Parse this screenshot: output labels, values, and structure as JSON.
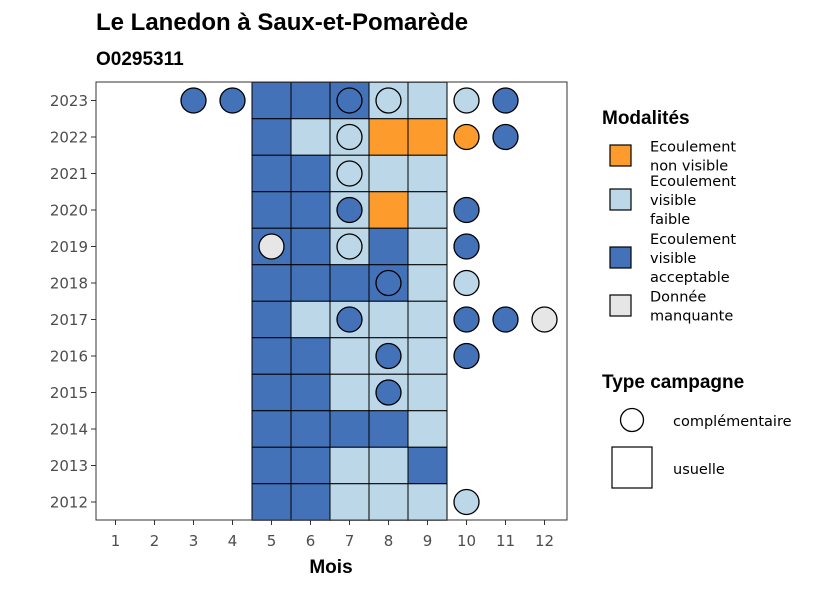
{
  "chart_data": {
    "type": "heatmap",
    "title": "Le Lanedon à Saux-et-Pomarède",
    "subtitle": "O0295311",
    "xlabel": "Mois",
    "ylabel": "",
    "x_ticks": [
      "1",
      "2",
      "3",
      "4",
      "5",
      "6",
      "7",
      "8",
      "9",
      "10",
      "11",
      "12"
    ],
    "y_ticks": [
      "2012",
      "2013",
      "2014",
      "2015",
      "2016",
      "2017",
      "2018",
      "2019",
      "2020",
      "2021",
      "2022",
      "2023"
    ],
    "xlim": [
      1,
      12
    ],
    "ylim": [
      2012,
      2023
    ],
    "grid": false,
    "legend_placement": "right",
    "colors": {
      "non_visible": "#fd9c2d",
      "faible": "#bcd8e8",
      "acceptable": "#4472b8",
      "manquante": "#e6e6e6"
    },
    "legend_modalites": {
      "title": "Modalités",
      "items": [
        {
          "key": "non_visible",
          "lines": [
            "Ecoulement",
            "non visible"
          ]
        },
        {
          "key": "faible",
          "lines": [
            "Ecoulement",
            "visible",
            "faible"
          ]
        },
        {
          "key": "acceptable",
          "lines": [
            "Ecoulement",
            "visible",
            "acceptable"
          ]
        },
        {
          "key": "manquante",
          "lines": [
            "Donnée",
            "manquante"
          ]
        }
      ]
    },
    "legend_campagne": {
      "title": "Type campagne",
      "items": [
        {
          "shape": "circle",
          "label": "complémentaire"
        },
        {
          "shape": "square",
          "label": "usuelle"
        }
      ]
    },
    "usuelle": [
      {
        "year": 2023,
        "month": 5,
        "value": "acceptable"
      },
      {
        "year": 2023,
        "month": 6,
        "value": "acceptable"
      },
      {
        "year": 2023,
        "month": 7,
        "value": "acceptable"
      },
      {
        "year": 2023,
        "month": 8,
        "value": "faible"
      },
      {
        "year": 2023,
        "month": 9,
        "value": "faible"
      },
      {
        "year": 2022,
        "month": 5,
        "value": "acceptable"
      },
      {
        "year": 2022,
        "month": 6,
        "value": "faible"
      },
      {
        "year": 2022,
        "month": 7,
        "value": "faible"
      },
      {
        "year": 2022,
        "month": 8,
        "value": "non_visible"
      },
      {
        "year": 2022,
        "month": 9,
        "value": "non_visible"
      },
      {
        "year": 2021,
        "month": 5,
        "value": "acceptable"
      },
      {
        "year": 2021,
        "month": 6,
        "value": "acceptable"
      },
      {
        "year": 2021,
        "month": 7,
        "value": "faible"
      },
      {
        "year": 2021,
        "month": 8,
        "value": "faible"
      },
      {
        "year": 2021,
        "month": 9,
        "value": "faible"
      },
      {
        "year": 2020,
        "month": 5,
        "value": "acceptable"
      },
      {
        "year": 2020,
        "month": 6,
        "value": "acceptable"
      },
      {
        "year": 2020,
        "month": 7,
        "value": "faible"
      },
      {
        "year": 2020,
        "month": 8,
        "value": "non_visible"
      },
      {
        "year": 2020,
        "month": 9,
        "value": "faible"
      },
      {
        "year": 2019,
        "month": 5,
        "value": "acceptable"
      },
      {
        "year": 2019,
        "month": 6,
        "value": "acceptable"
      },
      {
        "year": 2019,
        "month": 7,
        "value": "faible"
      },
      {
        "year": 2019,
        "month": 8,
        "value": "acceptable"
      },
      {
        "year": 2019,
        "month": 9,
        "value": "faible"
      },
      {
        "year": 2018,
        "month": 5,
        "value": "acceptable"
      },
      {
        "year": 2018,
        "month": 6,
        "value": "acceptable"
      },
      {
        "year": 2018,
        "month": 7,
        "value": "acceptable"
      },
      {
        "year": 2018,
        "month": 8,
        "value": "acceptable"
      },
      {
        "year": 2018,
        "month": 9,
        "value": "faible"
      },
      {
        "year": 2017,
        "month": 5,
        "value": "acceptable"
      },
      {
        "year": 2017,
        "month": 6,
        "value": "faible"
      },
      {
        "year": 2017,
        "month": 7,
        "value": "faible"
      },
      {
        "year": 2017,
        "month": 8,
        "value": "faible"
      },
      {
        "year": 2017,
        "month": 9,
        "value": "faible"
      },
      {
        "year": 2016,
        "month": 5,
        "value": "acceptable"
      },
      {
        "year": 2016,
        "month": 6,
        "value": "acceptable"
      },
      {
        "year": 2016,
        "month": 7,
        "value": "faible"
      },
      {
        "year": 2016,
        "month": 8,
        "value": "faible"
      },
      {
        "year": 2016,
        "month": 9,
        "value": "faible"
      },
      {
        "year": 2015,
        "month": 5,
        "value": "acceptable"
      },
      {
        "year": 2015,
        "month": 6,
        "value": "acceptable"
      },
      {
        "year": 2015,
        "month": 7,
        "value": "faible"
      },
      {
        "year": 2015,
        "month": 8,
        "value": "faible"
      },
      {
        "year": 2015,
        "month": 9,
        "value": "faible"
      },
      {
        "year": 2014,
        "month": 5,
        "value": "acceptable"
      },
      {
        "year": 2014,
        "month": 6,
        "value": "acceptable"
      },
      {
        "year": 2014,
        "month": 7,
        "value": "acceptable"
      },
      {
        "year": 2014,
        "month": 8,
        "value": "acceptable"
      },
      {
        "year": 2014,
        "month": 9,
        "value": "faible"
      },
      {
        "year": 2013,
        "month": 5,
        "value": "acceptable"
      },
      {
        "year": 2013,
        "month": 6,
        "value": "acceptable"
      },
      {
        "year": 2013,
        "month": 7,
        "value": "faible"
      },
      {
        "year": 2013,
        "month": 8,
        "value": "faible"
      },
      {
        "year": 2013,
        "month": 9,
        "value": "acceptable"
      },
      {
        "year": 2012,
        "month": 5,
        "value": "acceptable"
      },
      {
        "year": 2012,
        "month": 6,
        "value": "acceptable"
      },
      {
        "year": 2012,
        "month": 7,
        "value": "faible"
      },
      {
        "year": 2012,
        "month": 8,
        "value": "faible"
      },
      {
        "year": 2012,
        "month": 9,
        "value": "faible"
      }
    ],
    "complementaire": [
      {
        "year": 2023,
        "month": 3,
        "value": "acceptable"
      },
      {
        "year": 2023,
        "month": 4,
        "value": "acceptable"
      },
      {
        "year": 2023,
        "month": 7,
        "value": "acceptable"
      },
      {
        "year": 2023,
        "month": 8,
        "value": "faible"
      },
      {
        "year": 2023,
        "month": 10,
        "value": "faible"
      },
      {
        "year": 2023,
        "month": 11,
        "value": "acceptable"
      },
      {
        "year": 2022,
        "month": 7,
        "value": "faible"
      },
      {
        "year": 2022,
        "month": 10,
        "value": "non_visible"
      },
      {
        "year": 2022,
        "month": 11,
        "value": "acceptable"
      },
      {
        "year": 2021,
        "month": 7,
        "value": "faible"
      },
      {
        "year": 2020,
        "month": 7,
        "value": "acceptable"
      },
      {
        "year": 2020,
        "month": 10,
        "value": "acceptable"
      },
      {
        "year": 2019,
        "month": 5,
        "value": "manquante"
      },
      {
        "year": 2019,
        "month": 7,
        "value": "faible"
      },
      {
        "year": 2019,
        "month": 10,
        "value": "acceptable"
      },
      {
        "year": 2018,
        "month": 8,
        "value": "acceptable"
      },
      {
        "year": 2018,
        "month": 10,
        "value": "faible"
      },
      {
        "year": 2017,
        "month": 7,
        "value": "acceptable"
      },
      {
        "year": 2017,
        "month": 10,
        "value": "acceptable"
      },
      {
        "year": 2017,
        "month": 11,
        "value": "acceptable"
      },
      {
        "year": 2017,
        "month": 12,
        "value": "manquante"
      },
      {
        "year": 2016,
        "month": 8,
        "value": "acceptable"
      },
      {
        "year": 2016,
        "month": 10,
        "value": "acceptable"
      },
      {
        "year": 2015,
        "month": 8,
        "value": "acceptable"
      },
      {
        "year": 2012,
        "month": 10,
        "value": "faible"
      }
    ]
  }
}
